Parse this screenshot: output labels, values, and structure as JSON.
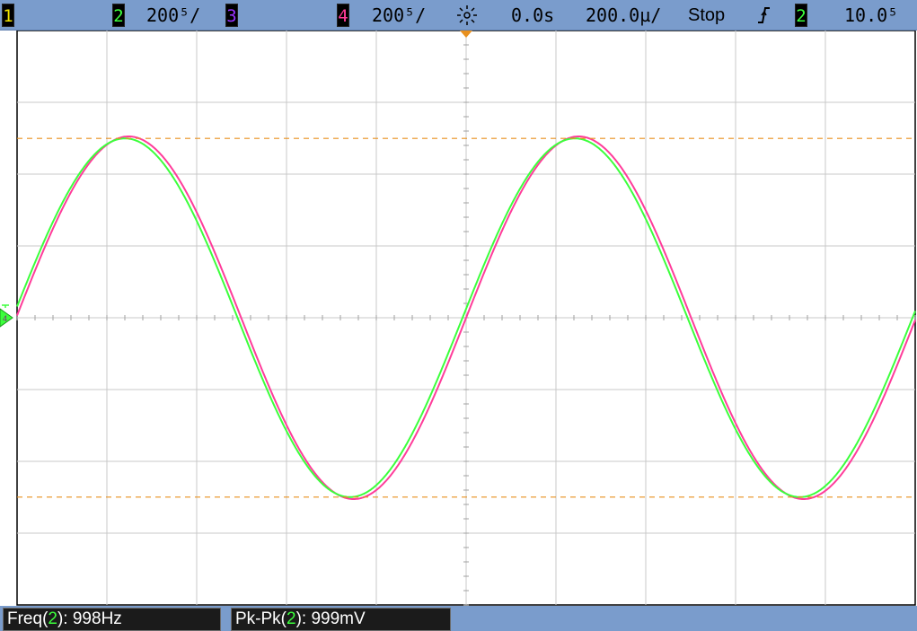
{
  "header": {
    "ch1_num": "1",
    "ch2_num": "2",
    "ch2_scale": "200⁵/",
    "ch3_num": "3",
    "ch4_num": "4",
    "ch4_scale": "200⁵/",
    "time_offset": "0.0s",
    "timebase": "200.0µ/",
    "run_state": "Stop",
    "trigger_slope_icon": "rising-edge-icon",
    "trigger_source": "2",
    "trigger_level": "10.0⁵"
  },
  "colors": {
    "bar": "#7a9ccc",
    "ch1": "#f2e600",
    "ch2": "#3cff3c",
    "ch3": "#9933ff",
    "ch4": "#ff3c9a",
    "cursor": "#e8901e",
    "grid": "#c9c9c9"
  },
  "measurements": {
    "freq": {
      "label_prefix": "Freq(",
      "channel": "2",
      "label_suffix": "): 998Hz"
    },
    "pkpk": {
      "label_prefix": "Pk-Pk(",
      "channel": "2",
      "label_suffix": "): 999mV"
    }
  },
  "chart_data": {
    "type": "line",
    "grid": true,
    "x_divisions": 10,
    "y_divisions": 8,
    "series": [
      {
        "channel": "2",
        "frequency_hz": 998,
        "pk_pk_mv": 999,
        "phase_lead_fraction": 0.008
      },
      {
        "channel": "4",
        "frequency_hz": 998,
        "pk_pk_mv": 1010,
        "phase_lead_fraction": 0.0
      }
    ]
  }
}
